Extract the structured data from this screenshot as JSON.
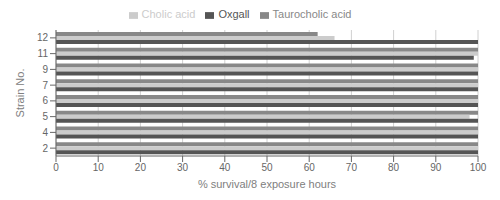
{
  "chart_data": {
    "type": "bar",
    "orientation": "horizontal",
    "categories": [
      "2",
      "4",
      "5",
      "6",
      "7",
      "9",
      "11",
      "12"
    ],
    "series": [
      {
        "name": "Taurocholic acid",
        "color": "#888888",
        "values": [
          100,
          100,
          100,
          100,
          100,
          100,
          100,
          62
        ]
      },
      {
        "name": "Cholic acid",
        "color": "#cccccc",
        "values": [
          100,
          100,
          98,
          100,
          100,
          100,
          100,
          66
        ]
      },
      {
        "name": "Oxgall",
        "color": "#555555",
        "values": [
          100,
          100,
          100,
          100,
          100,
          100,
          99,
          100
        ]
      }
    ],
    "xlabel": "% survival/8 exposure hours",
    "ylabel": "Strain No.",
    "xlim": [
      0,
      100
    ],
    "xticks": [
      0,
      10,
      20,
      30,
      40,
      50,
      60,
      70,
      80,
      90,
      100
    ],
    "grid": true,
    "legend": "top"
  }
}
